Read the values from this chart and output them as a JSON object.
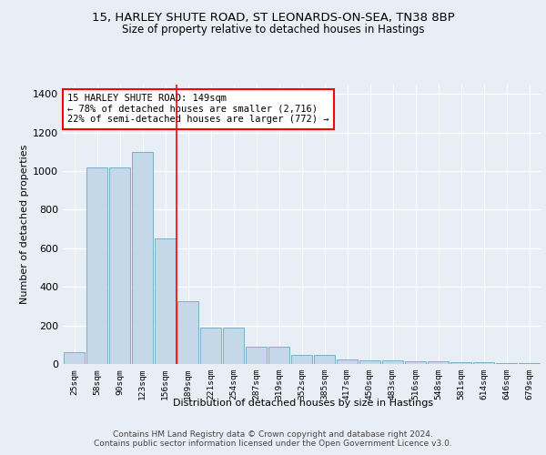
{
  "title1": "15, HARLEY SHUTE ROAD, ST LEONARDS-ON-SEA, TN38 8BP",
  "title2": "Size of property relative to detached houses in Hastings",
  "xlabel": "Distribution of detached houses by size in Hastings",
  "ylabel": "Number of detached properties",
  "categories": [
    "25sqm",
    "58sqm",
    "90sqm",
    "123sqm",
    "156sqm",
    "189sqm",
    "221sqm",
    "254sqm",
    "287sqm",
    "319sqm",
    "352sqm",
    "385sqm",
    "417sqm",
    "450sqm",
    "483sqm",
    "516sqm",
    "548sqm",
    "581sqm",
    "614sqm",
    "646sqm",
    "679sqm"
  ],
  "values": [
    60,
    1020,
    1020,
    1100,
    650,
    325,
    190,
    190,
    90,
    90,
    45,
    45,
    25,
    20,
    20,
    15,
    12,
    10,
    8,
    5,
    3
  ],
  "bar_color": "#c5d8ea",
  "bar_edge_color": "#7aafc8",
  "red_line_x": 4.5,
  "annotation_line1": "15 HARLEY SHUTE ROAD: 149sqm",
  "annotation_line2": "← 78% of detached houses are smaller (2,716)",
  "annotation_line3": "22% of semi-detached houses are larger (772) →",
  "footer1": "Contains HM Land Registry data © Crown copyright and database right 2024.",
  "footer2": "Contains public sector information licensed under the Open Government Licence v3.0.",
  "bg_color": "#e8eef5",
  "plot_bg_color": "#e8eef5",
  "ylim": [
    0,
    1450
  ],
  "yticks": [
    0,
    200,
    400,
    600,
    800,
    1000,
    1200,
    1400
  ],
  "figsize": [
    6.0,
    5.0
  ],
  "dpi": 100
}
